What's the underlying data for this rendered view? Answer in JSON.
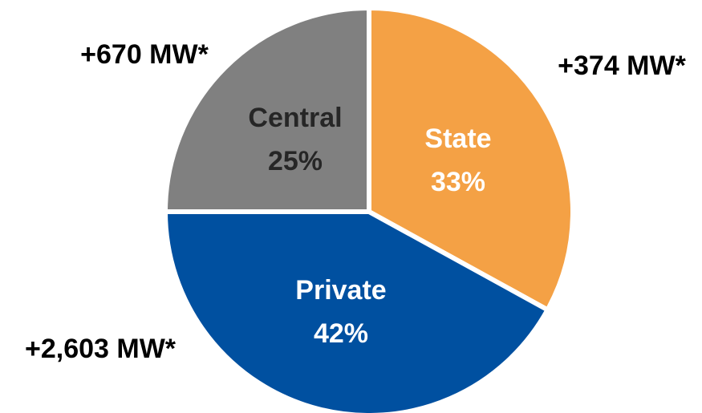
{
  "chart_data": {
    "type": "pie",
    "categories": [
      "State",
      "Private",
      "Central"
    ],
    "values": [
      33,
      42,
      25
    ],
    "value_labels": [
      "33%",
      "42%",
      "25%"
    ],
    "colors": [
      "#f4a145",
      "#0050a0",
      "#808080"
    ],
    "annotations": [
      "+374 MW*",
      "+2,603 MW*",
      "+670 MW*"
    ]
  }
}
